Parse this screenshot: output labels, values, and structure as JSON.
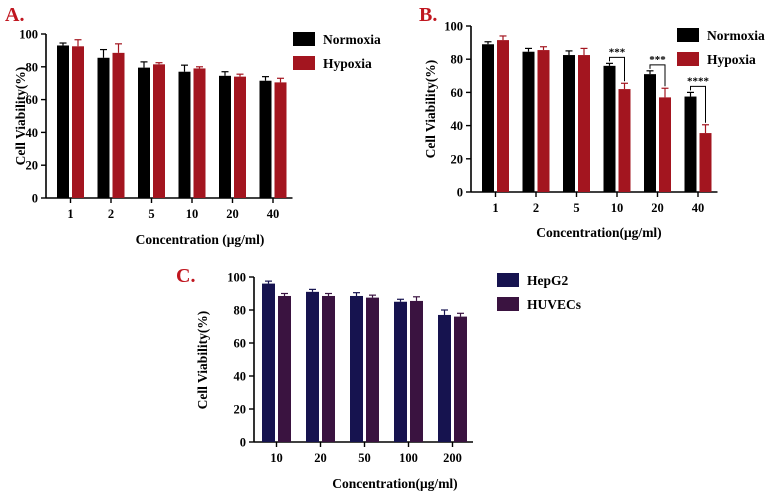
{
  "chart_data": [
    {
      "panel": "A.",
      "type": "bar",
      "title": "",
      "xlabel": "Concentration (μg/ml)",
      "ylabel": "Cell Viability(%)",
      "ylim": [
        0,
        100
      ],
      "yticks": [
        0,
        20,
        40,
        60,
        80,
        100
      ],
      "categories": [
        "1",
        "2",
        "5",
        "10",
        "20",
        "40"
      ],
      "series": [
        {
          "name": "Normoxia",
          "color": "#000000",
          "values": [
            93,
            85.5,
            79.5,
            77,
            74.5,
            71.5
          ],
          "errors": [
            1.5,
            5,
            3.5,
            4,
            2.5,
            2.5
          ]
        },
        {
          "name": "Hypoxia",
          "color": "#a3151f",
          "values": [
            92.5,
            88.5,
            81.5,
            79,
            74,
            70.5
          ],
          "errors": [
            4,
            5.5,
            1,
            1,
            1.5,
            2.5
          ]
        }
      ],
      "legend": "top-right",
      "significance": []
    },
    {
      "panel": "B.",
      "type": "bar",
      "title": "",
      "xlabel": "Concentration(μg/ml)",
      "ylabel": "Cell Viability(%)",
      "ylim": [
        0,
        100
      ],
      "yticks": [
        0,
        20,
        40,
        60,
        80,
        100
      ],
      "categories": [
        "1",
        "2",
        "5",
        "10",
        "20",
        "40"
      ],
      "series": [
        {
          "name": "Normoxia",
          "color": "#000000",
          "values": [
            89,
            84.5,
            82.5,
            76,
            71,
            57.5
          ],
          "errors": [
            1.5,
            2,
            2.5,
            1.5,
            2,
            2.5
          ]
        },
        {
          "name": "Hypoxia",
          "color": "#a3151f",
          "values": [
            91.5,
            85.5,
            82.5,
            62,
            57,
            35.5
          ],
          "errors": [
            2.5,
            2,
            4,
            3.5,
            5.5,
            5
          ]
        }
      ],
      "legend": "top-right",
      "significance": [
        {
          "category": "10",
          "label": "***"
        },
        {
          "category": "20",
          "label": "***"
        },
        {
          "category": "40",
          "label": "****"
        }
      ]
    },
    {
      "panel": "C.",
      "type": "bar",
      "title": "",
      "xlabel": "Concentration(μg/ml)",
      "ylabel": "Cell Viability(%)",
      "ylim": [
        0,
        100
      ],
      "yticks": [
        0,
        20,
        40,
        60,
        80,
        100
      ],
      "categories": [
        "10",
        "20",
        "50",
        "100",
        "200"
      ],
      "series": [
        {
          "name": "HepG2",
          "color": "#16134f",
          "values": [
            96,
            91,
            88.5,
            85,
            77
          ],
          "errors": [
            1.5,
            1.5,
            2,
            1.5,
            3
          ]
        },
        {
          "name": "HUVECs",
          "color": "#3a1340",
          "values": [
            88.5,
            88.5,
            87.5,
            85.5,
            76
          ],
          "errors": [
            1.5,
            1.5,
            1.5,
            2.5,
            2
          ]
        }
      ],
      "legend": "top-right",
      "significance": []
    }
  ]
}
